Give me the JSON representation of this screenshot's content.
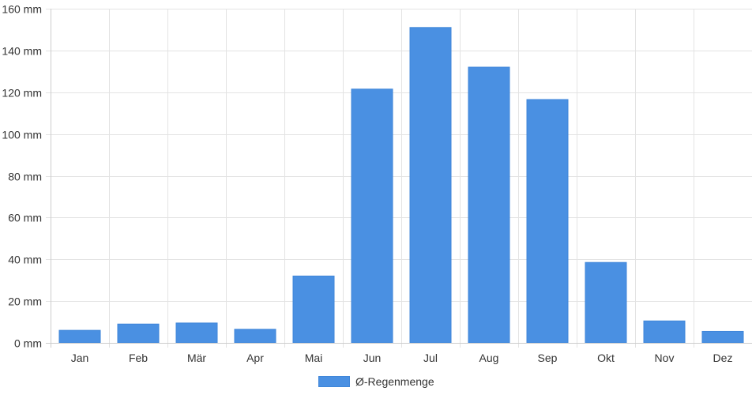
{
  "chart_data": {
    "type": "bar",
    "categories": [
      "Jan",
      "Feb",
      "Mär",
      "Apr",
      "Mai",
      "Jun",
      "Jul",
      "Aug",
      "Sep",
      "Okt",
      "Nov",
      "Dez"
    ],
    "series": [
      {
        "name": "Ø-Regenmenge",
        "values": [
          6,
          9,
          9.5,
          6.5,
          32,
          121.5,
          151,
          132,
          116.5,
          38.5,
          10.5,
          5.5
        ]
      }
    ],
    "y_ticks": [
      "0 mm",
      "20 mm",
      "40 mm",
      "60 mm",
      "80 mm",
      "100 mm",
      "120 mm",
      "140 mm",
      "160 mm"
    ],
    "ylim": [
      0,
      160
    ],
    "y_unit": "mm",
    "grid": true,
    "legend_position": "bottom",
    "colors": {
      "bar": "#4a90e2",
      "bar_border": "#3f86d9",
      "grid": "#e3e3e3",
      "text": "#333333"
    }
  }
}
